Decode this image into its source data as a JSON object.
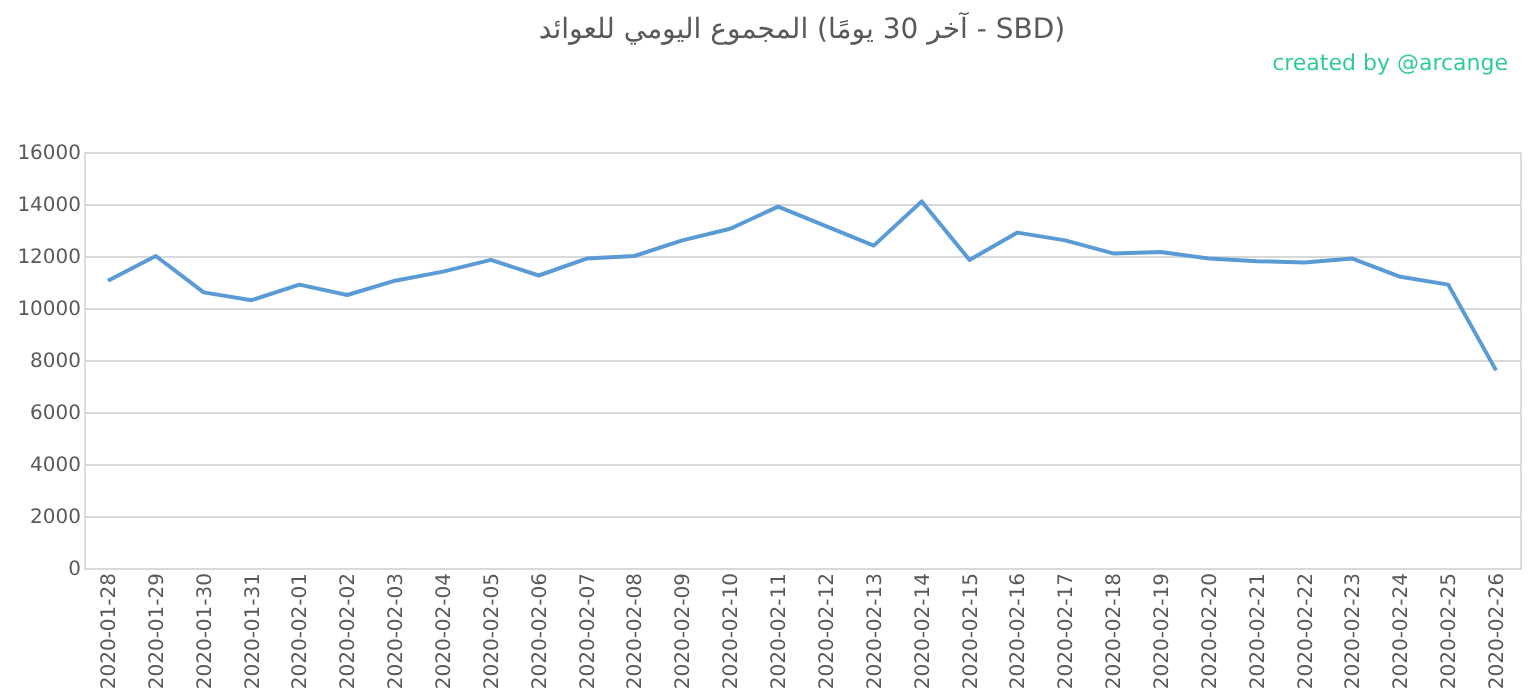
{
  "chart_data": {
    "type": "line",
    "title": "المجموع اليومي للعوائد (آخر 30 يومًا - SBD)",
    "annotations": [
      "created by @arcange"
    ],
    "categories": [
      "2020-01-28",
      "2020-01-29",
      "2020-01-30",
      "2020-01-31",
      "2020-02-01",
      "2020-02-02",
      "2020-02-03",
      "2020-02-04",
      "2020-02-05",
      "2020-02-06",
      "2020-02-07",
      "2020-02-08",
      "2020-02-09",
      "2020-02-10",
      "2020-02-11",
      "2020-02-12",
      "2020-02-13",
      "2020-02-14",
      "2020-02-15",
      "2020-02-16",
      "2020-02-17",
      "2020-02-18",
      "2020-02-19",
      "2020-02-20",
      "2020-02-21",
      "2020-02-22",
      "2020-02-23",
      "2020-02-24",
      "2020-02-25",
      "2020-02-26"
    ],
    "series": [
      {
        "color": "#5b9bd5",
        "values": [
          11050,
          12000,
          10600,
          10300,
          10900,
          10500,
          11050,
          11400,
          11850,
          11250,
          11900,
          12000,
          12600,
          13050,
          13900,
          13150,
          12400,
          14100,
          11850,
          12900,
          12600,
          12100,
          12150,
          11900,
          11800,
          11750,
          11900,
          11200,
          10900,
          7600
        ]
      }
    ],
    "ylim": [
      0,
      16000
    ],
    "yticks": [
      0,
      2000,
      4000,
      6000,
      8000,
      10000,
      12000,
      14000,
      16000
    ],
    "grid": "y",
    "marker": "none",
    "line_style": "solid"
  }
}
